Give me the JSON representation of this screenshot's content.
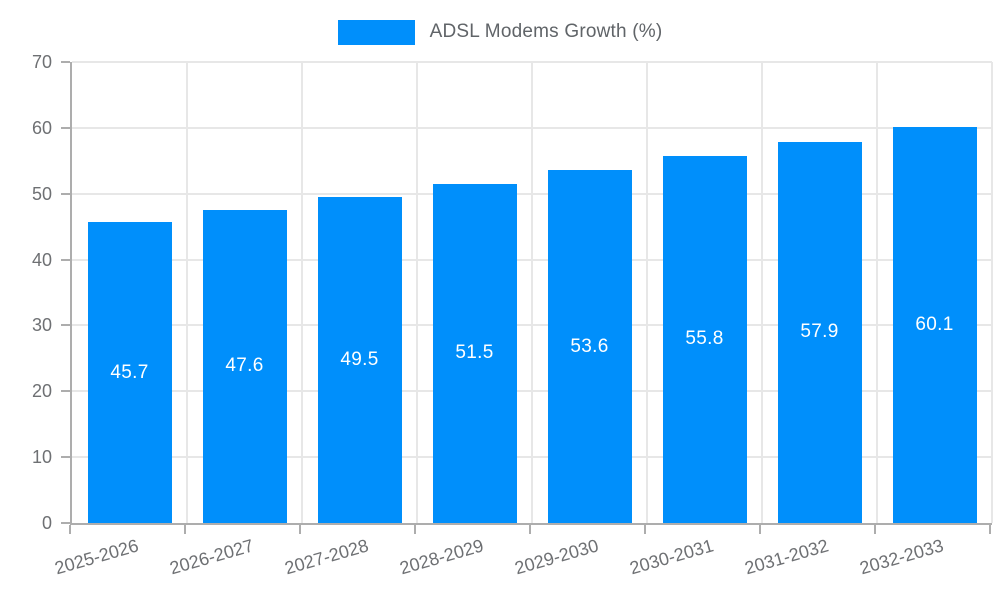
{
  "chart_data": {
    "type": "bar",
    "title": "",
    "xlabel": "",
    "ylabel": "",
    "legend": {
      "position": "top",
      "label": "ADSL Modems Growth (%)"
    },
    "series": [
      {
        "name": "ADSL Modems Growth (%)",
        "values": [
          45.7,
          47.6,
          49.5,
          51.5,
          53.6,
          55.8,
          57.9,
          60.1
        ],
        "value_labels": [
          "45.7",
          "47.6",
          "49.5",
          "51.5",
          "53.6",
          "55.8",
          "57.9",
          "60.1"
        ]
      }
    ],
    "categories": [
      "2025-2026",
      "2026-2027",
      "2027-2028",
      "2028-2029",
      "2029-2030",
      "2030-2031",
      "2031-2032",
      "2032-2033"
    ],
    "ylim": [
      0,
      70
    ],
    "yticks": [
      "0",
      "10",
      "20",
      "30",
      "40",
      "50",
      "60",
      "70"
    ],
    "grid": "on",
    "colors": {
      "bar": "#008FFB",
      "bar_value_label": "#ffffff",
      "gridline": "#e7e7e7",
      "axis_line": "#adadad",
      "tick_label": "#6e7073",
      "legend_text": "#606468"
    }
  }
}
